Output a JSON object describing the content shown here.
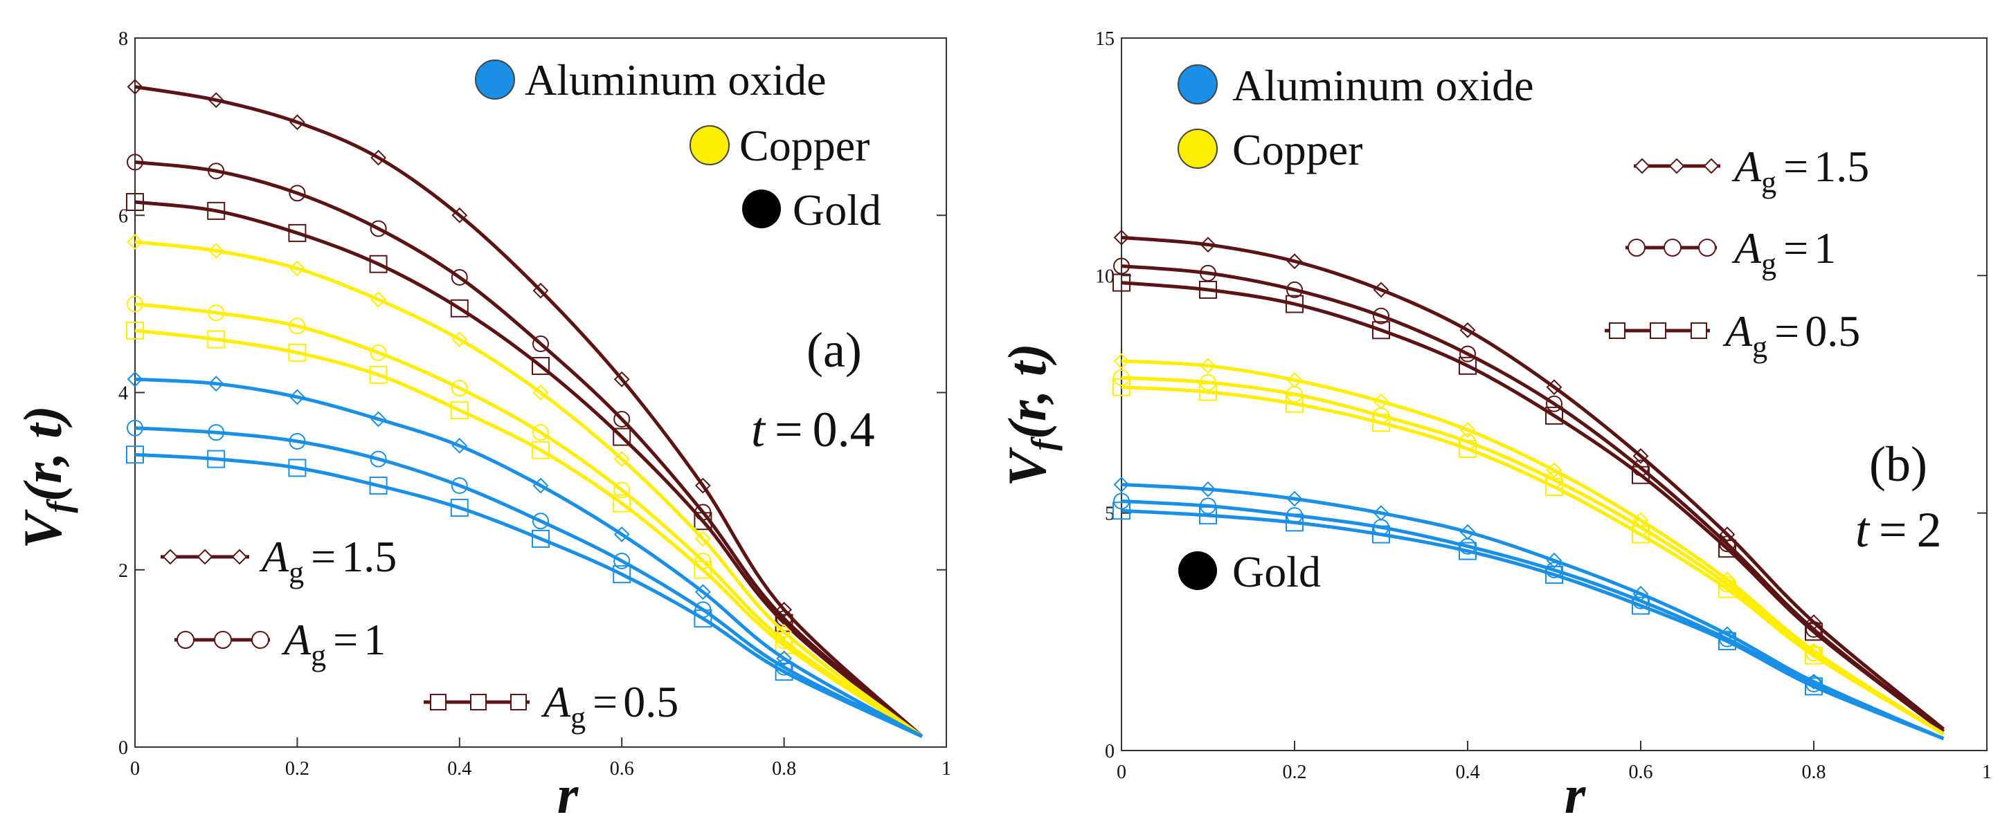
{
  "chart_data": [
    {
      "type": "line",
      "panel_label": "(a)",
      "annotation": {
        "var": "t",
        "equals": "=",
        "value": "0.4"
      },
      "xlabel": "r",
      "ylabel": {
        "base": "V",
        "sub": "f",
        "args": "(r, t)"
      },
      "xlim": [
        0,
        1
      ],
      "ylim": [
        0,
        8
      ],
      "xticks": [
        "0",
        "0.2",
        "0.4",
        "0.6",
        "0.8",
        "1"
      ],
      "xtick_values": [
        0,
        0.2,
        0.4,
        0.6,
        0.8,
        1
      ],
      "yticks": [
        "0",
        "2",
        "4",
        "6",
        "8"
      ],
      "ytick_values": [
        0,
        2,
        4,
        6,
        8
      ],
      "x": [
        0,
        0.1,
        0.2,
        0.3,
        0.4,
        0.5,
        0.6,
        0.7,
        0.8,
        0.97
      ],
      "fluid_legend": [
        {
          "label": "Aluminum oxide",
          "color": "#1a8fe6"
        },
        {
          "label": "Copper",
          "color": "#ffee00"
        },
        {
          "label": "Gold",
          "color": "#000000"
        }
      ],
      "ag_legend": [
        {
          "marker": "diamond",
          "var": "A",
          "sub": "g",
          "value": "1.5"
        },
        {
          "marker": "circle",
          "var": "A",
          "sub": "g",
          "value": "1"
        },
        {
          "marker": "square",
          "var": "A",
          "sub": "g",
          "value": "0.5"
        }
      ],
      "series": [
        {
          "name": "Gold, Ag = 1.5",
          "color": "#5a1414",
          "marker": "diamond",
          "values": [
            7.45,
            7.3,
            7.05,
            6.65,
            6.0,
            5.15,
            4.15,
            2.95,
            1.55,
            0.12
          ]
        },
        {
          "name": "Gold, Ag = 1",
          "color": "#5a1414",
          "marker": "circle",
          "values": [
            6.6,
            6.5,
            6.25,
            5.85,
            5.3,
            4.55,
            3.7,
            2.65,
            1.45,
            0.12
          ]
        },
        {
          "name": "Gold, Ag = 0.5",
          "color": "#5a1414",
          "marker": "square",
          "values": [
            6.15,
            6.05,
            5.8,
            5.45,
            4.95,
            4.3,
            3.5,
            2.55,
            1.4,
            0.12
          ]
        },
        {
          "name": "Copper, Ag = 1.5",
          "color": "#ffee00",
          "marker": "diamond",
          "values": [
            5.7,
            5.6,
            5.4,
            5.05,
            4.6,
            4.0,
            3.25,
            2.35,
            1.3,
            0.12
          ]
        },
        {
          "name": "Copper, Ag = 1",
          "color": "#ffee00",
          "marker": "circle",
          "values": [
            5.0,
            4.9,
            4.75,
            4.45,
            4.05,
            3.55,
            2.9,
            2.1,
            1.2,
            0.12
          ]
        },
        {
          "name": "Copper, Ag = 0.5",
          "color": "#ffee00",
          "marker": "square",
          "values": [
            4.7,
            4.6,
            4.45,
            4.2,
            3.8,
            3.35,
            2.75,
            2.0,
            1.15,
            0.12
          ]
        },
        {
          "name": "Aluminum oxide, Ag = 1.5",
          "color": "#1a8fe6",
          "marker": "diamond",
          "values": [
            4.15,
            4.1,
            3.95,
            3.7,
            3.4,
            2.95,
            2.4,
            1.75,
            1.0,
            0.12
          ]
        },
        {
          "name": "Aluminum oxide, Ag = 1",
          "color": "#1a8fe6",
          "marker": "circle",
          "values": [
            3.6,
            3.55,
            3.45,
            3.25,
            2.95,
            2.55,
            2.1,
            1.55,
            0.9,
            0.12
          ]
        },
        {
          "name": "Aluminum oxide, Ag = 0.5",
          "color": "#1a8fe6",
          "marker": "square",
          "values": [
            3.3,
            3.25,
            3.15,
            2.95,
            2.7,
            2.35,
            1.95,
            1.45,
            0.85,
            0.12
          ]
        }
      ]
    },
    {
      "type": "line",
      "panel_label": "(b)",
      "annotation": {
        "var": "t",
        "equals": "=",
        "value": "2"
      },
      "xlabel": "r",
      "ylabel": {
        "base": "V",
        "sub": "f",
        "args": "(r, t)"
      },
      "xlim": [
        0,
        1
      ],
      "ylim": [
        0,
        15
      ],
      "xticks": [
        "0",
        "0.2",
        "0.4",
        "0.6",
        "0.8",
        "1"
      ],
      "xtick_values": [
        0,
        0.2,
        0.4,
        0.6,
        0.8,
        1
      ],
      "yticks": [
        "0",
        "5",
        "10",
        "15"
      ],
      "ytick_values": [
        0,
        5,
        10,
        15
      ],
      "x": [
        0,
        0.1,
        0.2,
        0.3,
        0.4,
        0.5,
        0.6,
        0.7,
        0.8,
        0.95
      ],
      "fluid_legend": [
        {
          "label": "Aluminum oxide",
          "color": "#1a8fe6"
        },
        {
          "label": "Copper",
          "color": "#ffee00"
        },
        {
          "label": "Gold",
          "color": "#000000"
        }
      ],
      "ag_legend": [
        {
          "marker": "diamond",
          "var": "A",
          "sub": "g",
          "value": "1.5"
        },
        {
          "marker": "circle",
          "var": "A",
          "sub": "g",
          "value": "1"
        },
        {
          "marker": "square",
          "var": "A",
          "sub": "g",
          "value": "0.5"
        }
      ],
      "series": [
        {
          "name": "Gold, Ag = 1.5",
          "color": "#5a1414",
          "marker": "diamond",
          "values": [
            10.8,
            10.65,
            10.3,
            9.7,
            8.85,
            7.65,
            6.2,
            4.55,
            2.7,
            0.45
          ]
        },
        {
          "name": "Gold, Ag = 1",
          "color": "#5a1414",
          "marker": "circle",
          "values": [
            10.2,
            10.05,
            9.7,
            9.15,
            8.35,
            7.3,
            5.95,
            4.35,
            2.55,
            0.4
          ]
        },
        {
          "name": "Gold, Ag = 0.5",
          "color": "#5a1414",
          "marker": "square",
          "values": [
            9.85,
            9.7,
            9.4,
            8.85,
            8.1,
            7.05,
            5.8,
            4.25,
            2.5,
            0.4
          ]
        },
        {
          "name": "Copper, Ag = 1.5",
          "color": "#ffee00",
          "marker": "diamond",
          "values": [
            8.2,
            8.1,
            7.8,
            7.35,
            6.75,
            5.9,
            4.85,
            3.6,
            2.1,
            0.35
          ]
        },
        {
          "name": "Copper, Ag = 1",
          "color": "#ffee00",
          "marker": "circle",
          "values": [
            7.85,
            7.75,
            7.5,
            7.05,
            6.5,
            5.7,
            4.7,
            3.5,
            2.05,
            0.35
          ]
        },
        {
          "name": "Copper, Ag = 0.5",
          "color": "#ffee00",
          "marker": "square",
          "values": [
            7.65,
            7.55,
            7.3,
            6.9,
            6.35,
            5.55,
            4.55,
            3.4,
            2.0,
            0.35
          ]
        },
        {
          "name": "Aluminum oxide, Ag = 1.5",
          "color": "#1a8fe6",
          "marker": "diamond",
          "values": [
            5.6,
            5.5,
            5.3,
            5.0,
            4.6,
            4.0,
            3.3,
            2.45,
            1.45,
            0.25
          ]
        },
        {
          "name": "Aluminum oxide, Ag = 1",
          "color": "#1a8fe6",
          "marker": "circle",
          "values": [
            5.25,
            5.15,
            4.95,
            4.7,
            4.3,
            3.8,
            3.15,
            2.35,
            1.4,
            0.25
          ]
        },
        {
          "name": "Aluminum oxide, Ag = 0.5",
          "color": "#1a8fe6",
          "marker": "square",
          "values": [
            5.05,
            4.95,
            4.8,
            4.55,
            4.2,
            3.7,
            3.05,
            2.3,
            1.35,
            0.25
          ]
        }
      ]
    }
  ]
}
